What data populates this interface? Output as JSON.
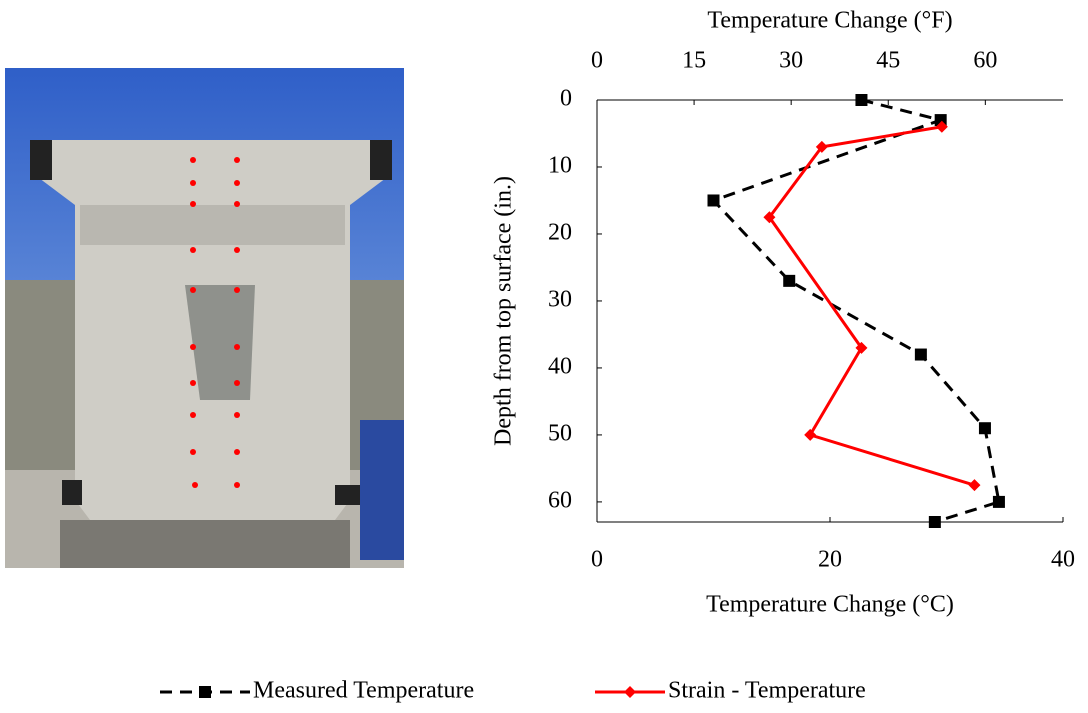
{
  "chart_data": {
    "type": "line",
    "x_title": "Temperature Change (°C)",
    "x2_title": "Temperature Change (°F)",
    "y_title": "Depth from top surface (in.)",
    "xlim": [
      0,
      40
    ],
    "xticks": [
      0,
      20,
      40
    ],
    "x2lim": [
      0,
      72
    ],
    "x2ticks": [
      0,
      15,
      30,
      45,
      60
    ],
    "ylim": [
      0,
      63
    ],
    "yticks": [
      0,
      10,
      20,
      30,
      40,
      50,
      60
    ],
    "y_inverted": true,
    "legend": "bottom",
    "series": [
      {
        "name": "Measured Temperature",
        "color": "#000000",
        "dash": true,
        "marker": "square",
        "x": [
          22.7,
          29.5,
          10.0,
          16.5,
          27.8,
          33.3,
          34.5,
          29.0
        ],
        "y": [
          0,
          3,
          15,
          27,
          38,
          49,
          60,
          63
        ]
      },
      {
        "name": "Strain - Temperature",
        "color": "#ff0000",
        "dash": false,
        "marker": "diamond",
        "x": [
          29.6,
          19.3,
          14.8,
          22.7,
          18.3,
          32.4
        ],
        "y": [
          4,
          7,
          17.5,
          37,
          50,
          57.5
        ]
      }
    ]
  }
}
